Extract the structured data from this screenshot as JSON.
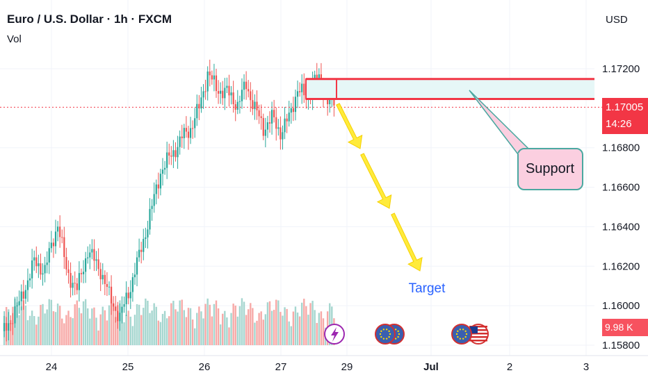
{
  "header": {
    "title": "Euro / U.S. Dollar · 1h · FXCM",
    "vol_label": "Vol",
    "currency": "USD"
  },
  "price_tag": {
    "price": "1.17005",
    "countdown": "14:26"
  },
  "volume_tag": "9.98 K",
  "annotations": {
    "support": "Support",
    "target": "Target"
  },
  "colors": {
    "up": "#26a69a",
    "down": "#ef5350",
    "up_volume": "#a5d6cf",
    "down_volume": "#f7a9a7",
    "zone_fill": "#e6f7f7",
    "zone_line": "#f23645",
    "arrow": "#ffeb3b",
    "target_text": "#2962ff",
    "callout_fill": "#fbcfe0",
    "callout_border": "#4aa8a0"
  },
  "event_icons": [
    "lightning-icon",
    "eu-flag-icon",
    "eu-flag-icon",
    "eu-flag-icon",
    "us-flag-icon"
  ],
  "chart_data": {
    "type": "candlestick",
    "title": "Euro / U.S. Dollar · 1h · FXCM",
    "x_ticks": [
      "24",
      "25",
      "26",
      "27",
      "29",
      "Jul",
      "2",
      "3"
    ],
    "y_ticks": [
      "1.15800",
      "1.16000",
      "1.16200",
      "1.16400",
      "1.16600",
      "1.16800",
      "1.17200"
    ],
    "ylim": [
      1.1578,
      1.1758
    ],
    "last_price": 1.17005,
    "support_zone": [
      1.17047,
      1.17148
    ],
    "series": [
      {
        "name": "price",
        "anchors": [
          [
            0,
            1.1585
          ],
          [
            8,
            1.1601
          ],
          [
            15,
            1.1622
          ],
          [
            20,
            1.1618
          ],
          [
            26,
            1.1642
          ],
          [
            30,
            1.1618
          ],
          [
            35,
            1.1608
          ],
          [
            40,
            1.1628
          ],
          [
            46,
            1.1618
          ],
          [
            50,
            1.1605
          ],
          [
            55,
            1.1594
          ],
          [
            60,
            1.161
          ],
          [
            64,
            1.1625
          ],
          [
            70,
            1.165
          ],
          [
            74,
            1.1668
          ],
          [
            80,
            1.1678
          ],
          [
            84,
            1.1685
          ],
          [
            88,
            1.169
          ],
          [
            92,
            1.17
          ],
          [
            96,
            1.1718
          ],
          [
            100,
            1.171
          ],
          [
            105,
            1.1708
          ],
          [
            110,
            1.1702
          ],
          [
            114,
            1.1712
          ],
          [
            118,
            1.17
          ],
          [
            122,
            1.169
          ],
          [
            126,
            1.1695
          ],
          [
            130,
            1.1688
          ],
          [
            134,
            1.1695
          ],
          [
            138,
            1.171
          ],
          [
            142,
            1.1705
          ],
          [
            146,
            1.1715
          ],
          [
            149,
            1.1712
          ],
          [
            152,
            1.1705
          ],
          [
            155,
            1.1702
          ]
        ]
      }
    ]
  }
}
